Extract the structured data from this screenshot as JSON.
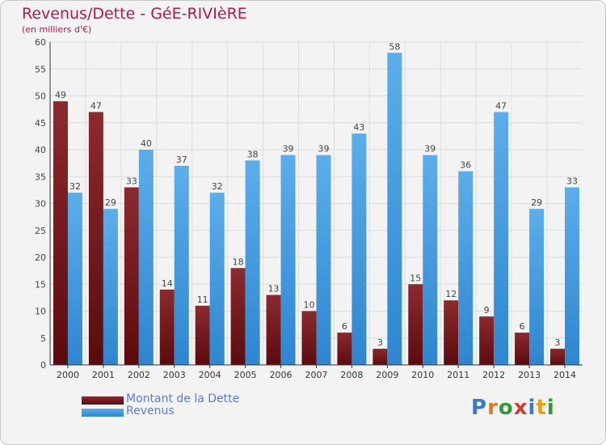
{
  "title": "Revenus/Dette - GéE-RIVIèRE",
  "subtitle": "(en milliers d'€)",
  "logo": {
    "text": "Proxiti",
    "letter_colors": [
      "#3a78c9",
      "#e07a1f",
      "#2f9a3a",
      "#d33b2e",
      "#3a78c9",
      "#e0a21f",
      "#2f9a3a"
    ]
  },
  "chart_data": {
    "type": "bar",
    "categories": [
      "2000",
      "2001",
      "2002",
      "2003",
      "2004",
      "2005",
      "2006",
      "2007",
      "2008",
      "2009",
      "2010",
      "2011",
      "2012",
      "2013",
      "2014"
    ],
    "series": [
      {
        "name": "Montant de la Dette",
        "values": [
          49,
          47,
          33,
          14,
          11,
          18,
          13,
          10,
          6,
          3,
          15,
          12,
          9,
          6,
          3
        ],
        "color_top": "#8b2a2e",
        "color_bottom": "#5a0b0f"
      },
      {
        "name": "Revenus",
        "values": [
          32,
          29,
          40,
          37,
          32,
          38,
          39,
          39,
          43,
          58,
          39,
          36,
          47,
          29,
          33
        ],
        "color_top": "#5caeea",
        "color_bottom": "#2f86cf"
      }
    ],
    "ylim": [
      0,
      60
    ],
    "yticks": [
      0,
      5,
      10,
      15,
      20,
      25,
      30,
      35,
      40,
      45,
      50,
      55,
      60
    ],
    "grid": true,
    "legend_position": "bottom-left"
  }
}
